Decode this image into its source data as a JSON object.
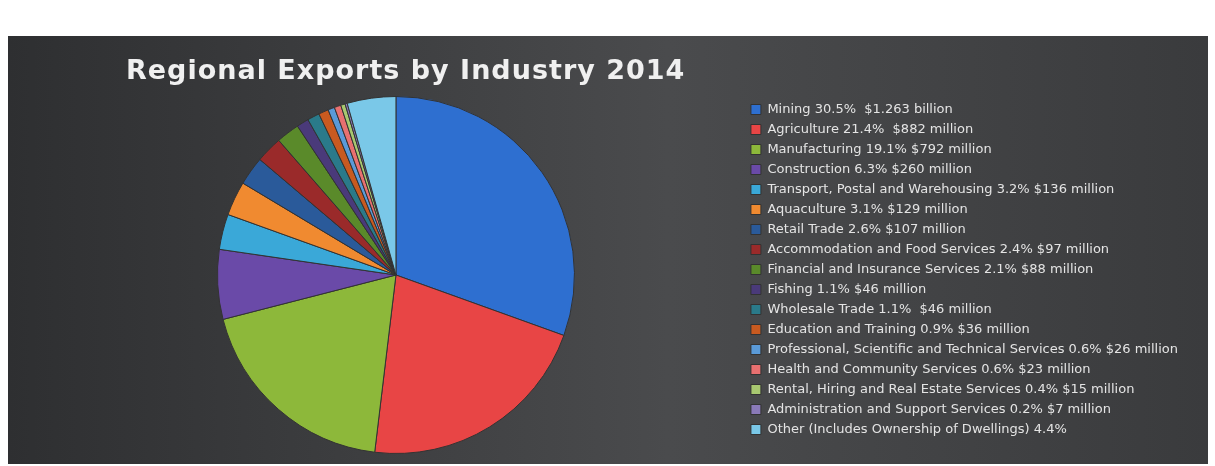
{
  "chart_data": {
    "type": "pie",
    "title": "Regional Exports by Industry 2014",
    "legend": "right",
    "categories": [
      "Mining 30.5%  $1.263 billion",
      "Agriculture 21.4%  $882 million",
      "Manufacturing 19.1% $792 million",
      "Construction 6.3% $260 million",
      "Transport, Postal and Warehousing 3.2% $136 million",
      "Aquaculture 3.1% $129 million",
      "Retail Trade 2.6% $107 million",
      "Accommodation and Food Services 2.4% $97 million",
      "Financial and Insurance Services 2.1% $88 million",
      "Fishing 1.1% $46 million",
      "Wholesale Trade 1.1%  $46 million",
      "Education and Training 0.9% $36 million",
      "Professional, Scientific and Technical Services 0.6% $26 million",
      "Health and Community Services 0.6% $23 million",
      "Rental, Hiring and Real Estate Services 0.4% $15 million",
      "Administration and Support Services 0.2% $7 million",
      "Other (Includes Ownership of Dwellings) 4.4%"
    ],
    "values": [
      30.5,
      21.4,
      19.1,
      6.3,
      3.2,
      3.1,
      2.6,
      2.4,
      2.1,
      1.1,
      1.1,
      0.9,
      0.6,
      0.6,
      0.4,
      0.2,
      4.4
    ],
    "colors": [
      "#2e6fd0",
      "#e84545",
      "#8db83a",
      "#6a4aa8",
      "#3aa8d8",
      "#f08a30",
      "#2a5a9a",
      "#9a2a2a",
      "#5a8a2a",
      "#4a3a7a",
      "#2a7a8a",
      "#c85a20",
      "#5a9ad8",
      "#e87070",
      "#a8c870",
      "#8a7ab8",
      "#7ac8e8"
    ]
  }
}
